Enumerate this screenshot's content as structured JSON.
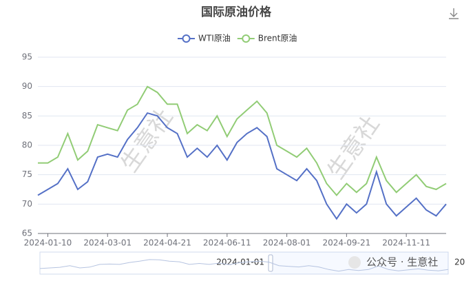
{
  "chart_data": {
    "type": "line",
    "title": "国际原油价格",
    "categories": [
      null,
      "2024-01-10",
      null,
      null,
      null,
      null,
      null,
      "2024-03-01",
      null,
      null,
      null,
      null,
      null,
      "2024-04-21",
      null,
      null,
      null,
      null,
      null,
      "2024-06-11",
      null,
      null,
      null,
      null,
      null,
      "2024-08-01",
      null,
      null,
      null,
      null,
      null,
      "2024-09-21",
      null,
      null,
      null,
      null,
      null,
      "2024-11-11",
      null,
      null,
      null,
      null
    ],
    "series": [
      {
        "name": "WTI原油",
        "color": "#5470c6",
        "values": [
          71.5,
          72.5,
          73.5,
          76,
          72.5,
          73.8,
          78,
          78.5,
          78,
          81,
          83,
          85.5,
          85,
          83,
          82,
          78,
          79.5,
          78,
          80,
          77.5,
          80.5,
          82,
          83,
          81.5,
          76,
          75,
          74,
          76,
          74,
          70,
          67.5,
          70,
          68.5,
          70,
          75.5,
          70,
          68,
          69.5,
          71,
          69,
          68,
          70
        ]
      },
      {
        "name": "Brent原油",
        "color": "#91cc75",
        "values": [
          77,
          77,
          78,
          82,
          77.5,
          79,
          83.5,
          83,
          82.5,
          86,
          87,
          90,
          89,
          87,
          87,
          82,
          83.5,
          82.5,
          85,
          81.5,
          84.5,
          86,
          87.5,
          85.5,
          80,
          79,
          78,
          79.5,
          77,
          73.5,
          71.5,
          73.5,
          72,
          73.5,
          78,
          74,
          72,
          73.5,
          75,
          73,
          72.5,
          73.5
        ]
      }
    ],
    "ylim": [
      65,
      95
    ],
    "yticks": [
      65,
      70,
      75,
      80,
      85,
      90,
      95
    ],
    "grid": true,
    "legend": "top",
    "zoom_start_label": "2024-01-01",
    "zoom_end_label": "20",
    "watermark": "生意社",
    "footer_watermark": "公众号 · 生意社"
  }
}
